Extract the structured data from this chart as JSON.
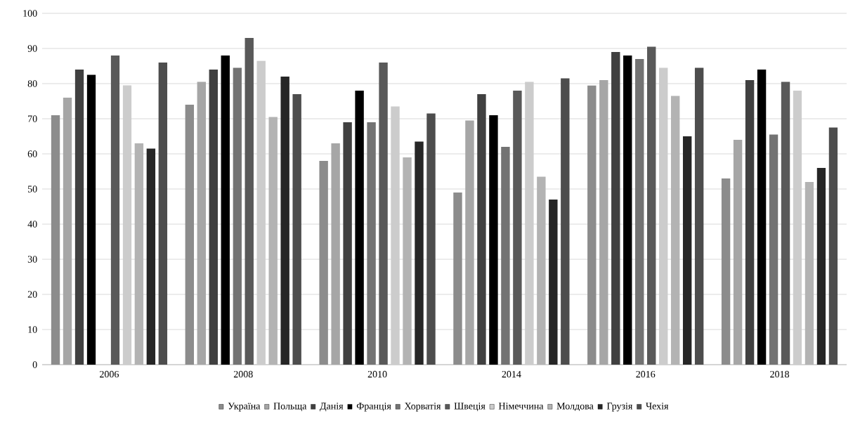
{
  "chart_data": {
    "type": "bar",
    "categories": [
      "2006",
      "2008",
      "2010",
      "2014",
      "2016",
      "2018"
    ],
    "series": [
      {
        "name": "Україна",
        "color": "#8c8c8c",
        "values": [
          71,
          74,
          58,
          49,
          79.5,
          53
        ]
      },
      {
        "name": "Польща",
        "color": "#a6a6a6",
        "values": [
          76,
          80.5,
          63,
          69.5,
          81,
          64
        ]
      },
      {
        "name": "Данія",
        "color": "#404040",
        "values": [
          84,
          84,
          69,
          77,
          89,
          81
        ]
      },
      {
        "name": "Франція",
        "color": "#000000",
        "values": [
          82.5,
          88,
          78,
          71,
          88,
          84
        ]
      },
      {
        "name": "Хорватія",
        "color": "#737373",
        "values": [
          null,
          84.5,
          69,
          62,
          87,
          65.5
        ]
      },
      {
        "name": "Швеція",
        "color": "#595959",
        "values": [
          88,
          93,
          86,
          78,
          90.5,
          80.5
        ]
      },
      {
        "name": "Німеччина",
        "color": "#cccccc",
        "values": [
          79.5,
          86.5,
          73.5,
          80.5,
          84.5,
          78
        ]
      },
      {
        "name": "Молдова",
        "color": "#b3b3b3",
        "values": [
          63,
          70.5,
          59,
          53.5,
          76.5,
          52
        ]
      },
      {
        "name": "Грузія",
        "color": "#262626",
        "values": [
          61.5,
          82,
          63.5,
          47,
          65,
          56
        ]
      },
      {
        "name": "Чехія",
        "color": "#4d4d4d",
        "values": [
          86,
          77,
          71.5,
          81.5,
          84.5,
          67.5
        ]
      }
    ],
    "ylim": [
      0,
      100
    ],
    "yticks": [
      0,
      10,
      20,
      30,
      40,
      50,
      60,
      70,
      80,
      90,
      100
    ],
    "grid": "y",
    "legend": "bottom"
  }
}
